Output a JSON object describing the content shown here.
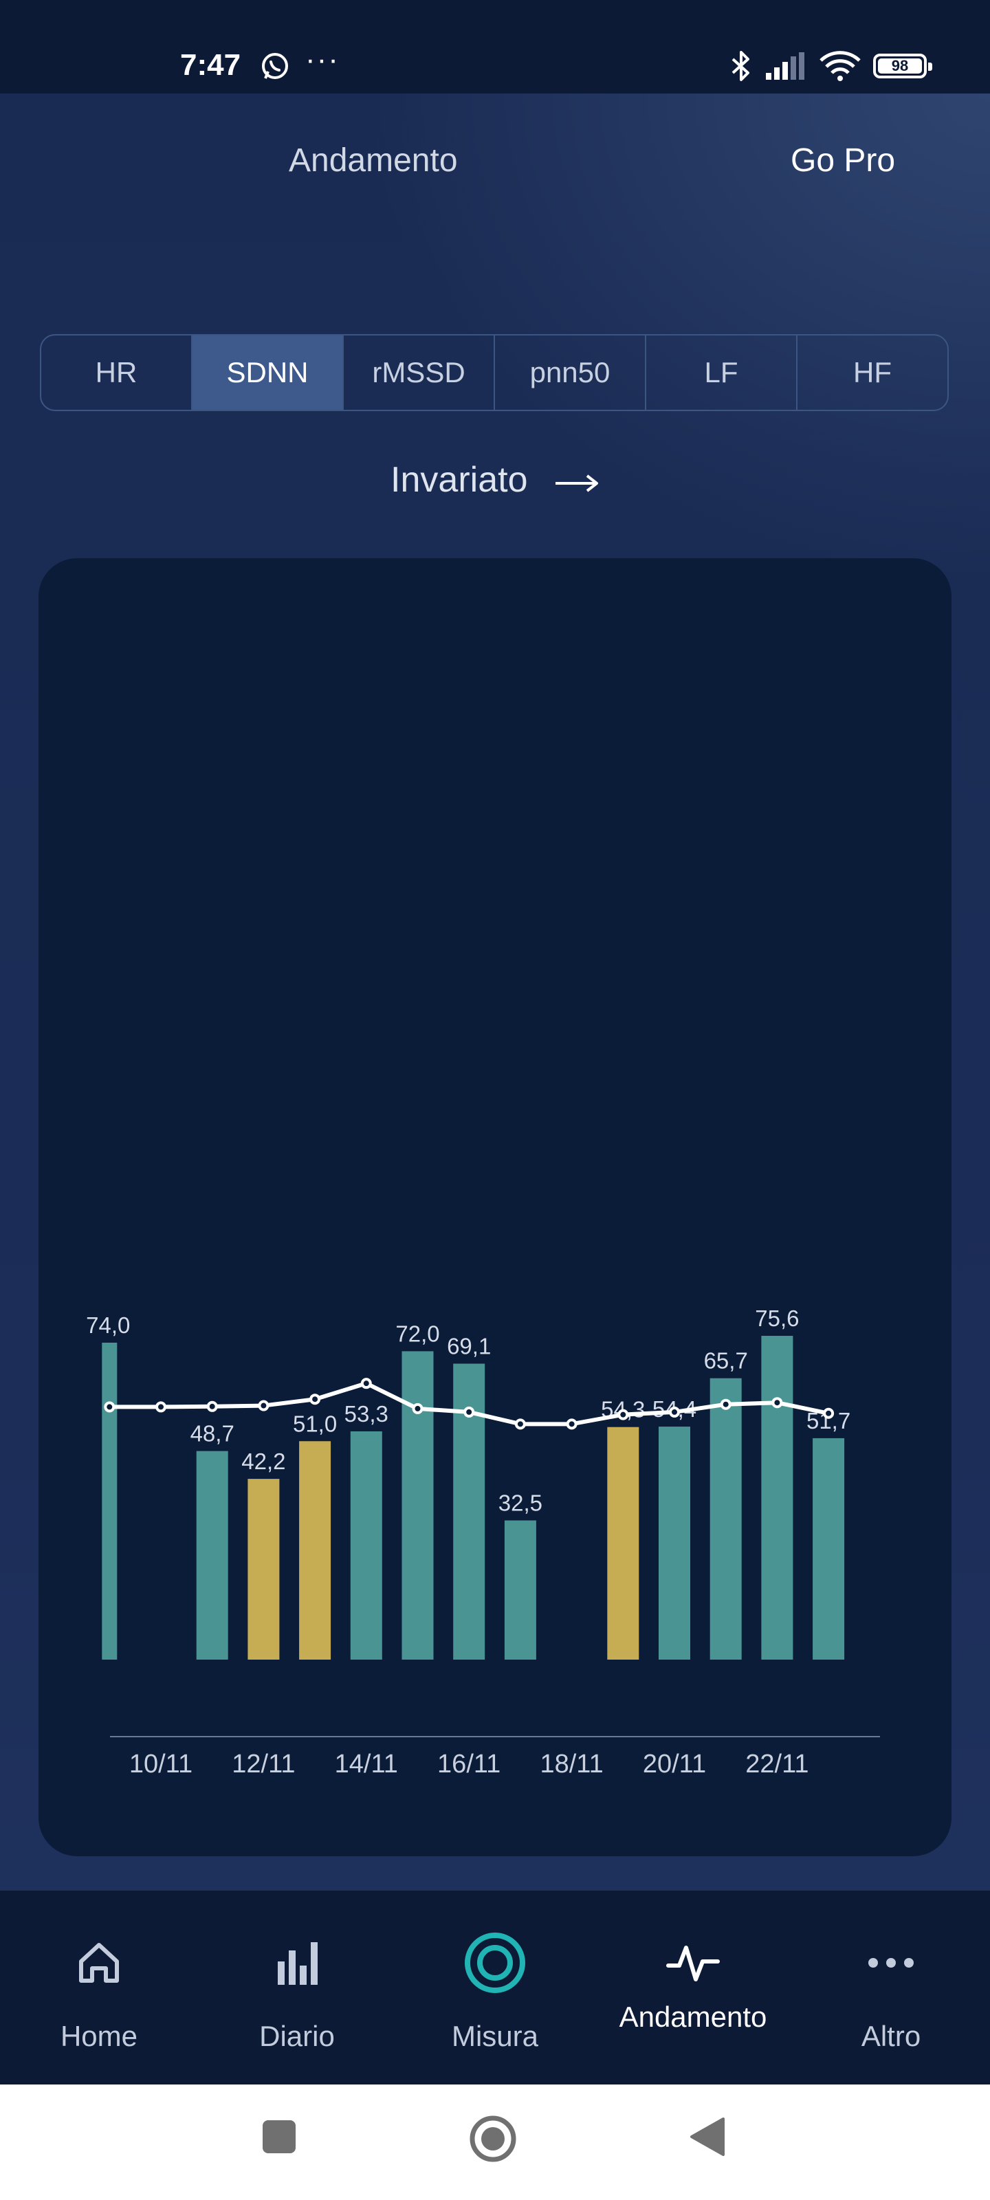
{
  "status_bar": {
    "time": "7:47",
    "more": "···",
    "battery": "98"
  },
  "header": {
    "title": "Andamento",
    "go_pro": "Go Pro"
  },
  "tabs": [
    {
      "label": "HR",
      "active": false
    },
    {
      "label": "SDNN",
      "active": true
    },
    {
      "label": "rMSSD",
      "active": false
    },
    {
      "label": "pnn50",
      "active": false
    },
    {
      "label": "LF",
      "active": false
    },
    {
      "label": "HF",
      "active": false
    }
  ],
  "trend": {
    "label": "Invariato",
    "icon": "arrow-right-icon"
  },
  "chart_data": {
    "type": "bar",
    "x_tick_labels": [
      "10/11",
      "12/11",
      "14/11",
      "16/11",
      "18/11",
      "20/11",
      "22/11"
    ],
    "colors": {
      "normal": "#4a9494",
      "low": "#c6ac52",
      "line": "#ffffff",
      "axis": "#6a7a96"
    },
    "bars": [
      {
        "day": 9,
        "value": 74.0,
        "label": "74,0",
        "color": "normal",
        "thin": true
      },
      {
        "day": 11,
        "value": 48.7,
        "label": "48,7",
        "color": "normal"
      },
      {
        "day": 12,
        "value": 42.2,
        "label": "42,2",
        "color": "low"
      },
      {
        "day": 13,
        "value": 51.0,
        "label": "51,0",
        "color": "low"
      },
      {
        "day": 14,
        "value": 53.3,
        "label": "53,3",
        "color": "normal"
      },
      {
        "day": 15,
        "value": 72.0,
        "label": "72,0",
        "color": "normal"
      },
      {
        "day": 16,
        "value": 69.1,
        "label": "69,1",
        "color": "normal"
      },
      {
        "day": 17,
        "value": 32.5,
        "label": "32,5",
        "color": "normal"
      },
      {
        "day": 19,
        "value": 54.3,
        "label": "54,3",
        "color": "low"
      },
      {
        "day": 20,
        "value": 54.4,
        "label": "54,4",
        "color": "normal"
      },
      {
        "day": 21,
        "value": 65.7,
        "label": "65,7",
        "color": "normal"
      },
      {
        "day": 22,
        "value": 75.6,
        "label": "75,6",
        "color": "normal"
      },
      {
        "day": 23,
        "value": 51.7,
        "label": "51,7",
        "color": "normal"
      }
    ],
    "average_line": [
      {
        "day": 9,
        "value": 59.0
      },
      {
        "day": 10,
        "value": 59.0
      },
      {
        "day": 11,
        "value": 59.1
      },
      {
        "day": 12,
        "value": 59.3
      },
      {
        "day": 13,
        "value": 60.8
      },
      {
        "day": 14,
        "value": 64.5
      },
      {
        "day": 15,
        "value": 58.6
      },
      {
        "day": 16,
        "value": 57.8
      },
      {
        "day": 17,
        "value": 55.0
      },
      {
        "day": 18,
        "value": 55.0
      },
      {
        "day": 19,
        "value": 57.2
      },
      {
        "day": 20,
        "value": 57.8
      },
      {
        "day": 21,
        "value": 59.6
      },
      {
        "day": 22,
        "value": 60.0
      },
      {
        "day": 23,
        "value": 57.5
      }
    ],
    "x_range": [
      8.5,
      24.5
    ],
    "y_range": [
      0,
      100
    ],
    "grid": false
  },
  "bottom_nav": [
    {
      "label": "Home",
      "icon": "home-icon",
      "active": false
    },
    {
      "label": "Diario",
      "icon": "bar-chart-icon",
      "active": false
    },
    {
      "label": "Misura",
      "icon": "measure-ring-icon",
      "active": false
    },
    {
      "label": "Andamento",
      "icon": "pulse-icon",
      "active": true
    },
    {
      "label": "Altro",
      "icon": "more-icon",
      "active": false
    }
  ]
}
